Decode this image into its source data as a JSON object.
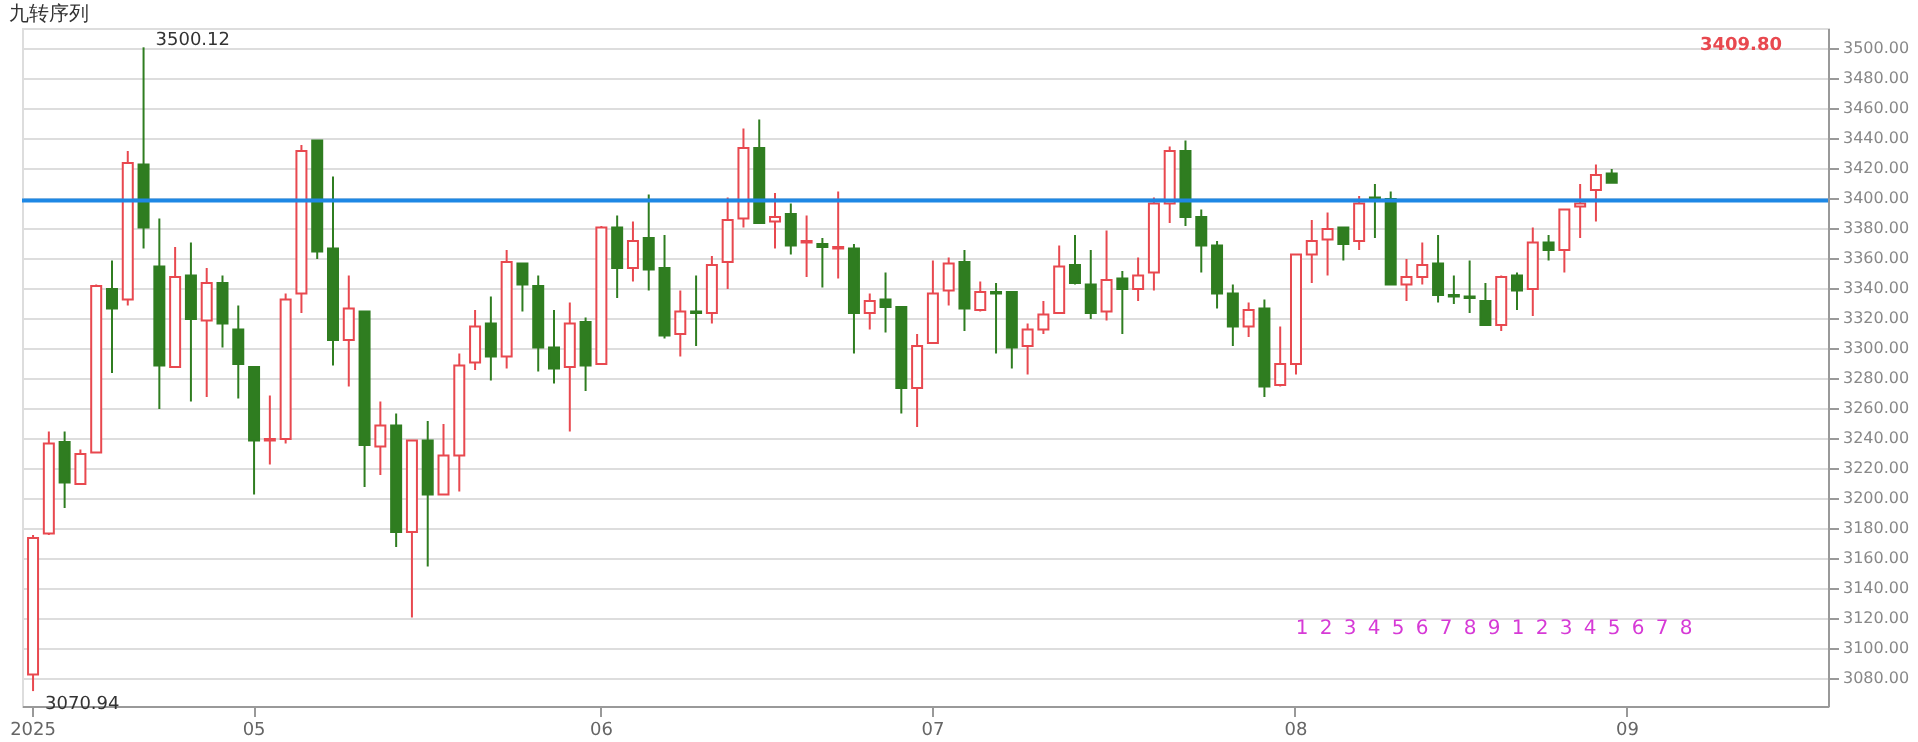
{
  "chart_data": {
    "type": "candlestick",
    "title": "九转序列",
    "categories": [
      "2025",
      null,
      null,
      null,
      null,
      null,
      null,
      null,
      null,
      null,
      null,
      null,
      null,
      null,
      "05",
      null,
      null,
      null,
      null,
      null,
      null,
      null,
      null,
      null,
      null,
      null,
      null,
      null,
      null,
      null,
      null,
      null,
      null,
      null,
      null,
      null,
      "06",
      null,
      null,
      null,
      null,
      null,
      null,
      null,
      null,
      null,
      null,
      null,
      null,
      null,
      null,
      null,
      null,
      null,
      null,
      null,
      null,
      "07",
      null,
      null,
      null,
      null,
      null,
      null,
      null,
      null,
      null,
      null,
      null,
      null,
      null,
      null,
      null,
      null,
      null,
      null,
      null,
      null,
      null,
      null,
      "08",
      null,
      null,
      null,
      null,
      null,
      null,
      null,
      null,
      null,
      null,
      null,
      null,
      null,
      null,
      null,
      null,
      null,
      null,
      null,
      null,
      "09",
      null,
      null,
      null,
      null,
      null,
      null,
      null,
      null,
      null,
      null,
      null,
      null
    ],
    "ohlc": [
      [
        3082,
        3175,
        3070.94,
        3173
      ],
      [
        3176,
        3244,
        3175,
        3236
      ],
      [
        3237,
        3244,
        3193,
        3210
      ],
      [
        3209,
        3232,
        3209,
        3229
      ],
      [
        3230,
        3342,
        3230,
        3341
      ],
      [
        3339,
        3358,
        3283,
        3326
      ],
      [
        3332,
        3431,
        3328,
        3423
      ],
      [
        3422,
        3500.12,
        3366,
        3380
      ],
      [
        3354,
        3386,
        3259,
        3288
      ],
      [
        3287,
        3367,
        3287,
        3347
      ],
      [
        3348,
        3370,
        3264,
        3319
      ],
      [
        3318,
        3353,
        3267,
        3343
      ],
      [
        3343,
        3348,
        3300,
        3316
      ],
      [
        3312,
        3328,
        3266,
        3289
      ],
      [
        3287,
        3287,
        3202,
        3238
      ],
      [
        3238,
        3268,
        3222,
        3239
      ],
      [
        3239,
        3336,
        3236,
        3332
      ],
      [
        3336,
        3435,
        3323,
        3431
      ],
      [
        3438,
        3438,
        3359,
        3364
      ],
      [
        3366,
        3414,
        3288,
        3305
      ],
      [
        3305,
        3348,
        3274,
        3326
      ],
      [
        3324,
        3324,
        3207,
        3235
      ],
      [
        3234,
        3264,
        3215,
        3248
      ],
      [
        3248,
        3256,
        3167,
        3177
      ],
      [
        3177,
        3238,
        3120,
        3238
      ],
      [
        3238,
        3251,
        3154,
        3202
      ],
      [
        3202,
        3249,
        3202,
        3228
      ],
      [
        3228,
        3296,
        3204,
        3288
      ],
      [
        3290,
        3325,
        3285,
        3314
      ],
      [
        3316,
        3334,
        3278,
        3294
      ],
      [
        3294,
        3365,
        3286,
        3357
      ],
      [
        3356,
        3356,
        3324,
        3342
      ],
      [
        3341,
        3348,
        3284,
        3300
      ],
      [
        3300,
        3325,
        3276,
        3286
      ],
      [
        3287,
        3330,
        3244,
        3316
      ],
      [
        3317,
        3320,
        3271,
        3288
      ],
      [
        3289,
        3381,
        3289,
        3380
      ],
      [
        3380,
        3388,
        3333,
        3353
      ],
      [
        3353,
        3384,
        3344,
        3371
      ],
      [
        3373,
        3402,
        3338,
        3352
      ],
      [
        3353,
        3375,
        3306,
        3308
      ],
      [
        3309,
        3338,
        3294,
        3324
      ],
      [
        3324,
        3348,
        3301,
        3323
      ],
      [
        3323,
        3361,
        3316,
        3355
      ],
      [
        3357,
        3400,
        3339,
        3385
      ],
      [
        3386,
        3446,
        3380,
        3433
      ],
      [
        3433,
        3452,
        3383,
        3383
      ],
      [
        3384,
        3403,
        3366,
        3387
      ],
      [
        3389,
        3396,
        3362,
        3368
      ],
      [
        3370,
        3388,
        3347,
        3371
      ],
      [
        3369,
        3373,
        3340,
        3367
      ],
      [
        3366,
        3404,
        3346,
        3367
      ],
      [
        3366,
        3369,
        3296,
        3323
      ],
      [
        3323,
        3336,
        3312,
        3331
      ],
      [
        3332,
        3350,
        3310,
        3327
      ],
      [
        3327,
        3327,
        3256,
        3273
      ],
      [
        3273,
        3309,
        3247,
        3301
      ],
      [
        3303,
        3358,
        3303,
        3336
      ],
      [
        3338,
        3360,
        3328,
        3356
      ],
      [
        3357,
        3365,
        3311,
        3326
      ],
      [
        3325,
        3344,
        3324,
        3337
      ],
      [
        3337,
        3343,
        3296,
        3336
      ],
      [
        3337,
        3337,
        3286,
        3300
      ],
      [
        3301,
        3316,
        3282,
        3312
      ],
      [
        3312,
        3331,
        3309,
        3322
      ],
      [
        3323,
        3368,
        3323,
        3354
      ],
      [
        3355,
        3375,
        3342,
        3343
      ],
      [
        3342,
        3365,
        3319,
        3323
      ],
      [
        3324,
        3378,
        3318,
        3345
      ],
      [
        3346,
        3351,
        3309,
        3339
      ],
      [
        3339,
        3360,
        3331,
        3348
      ],
      [
        3350,
        3400,
        3338,
        3396
      ],
      [
        3396,
        3434,
        3383,
        3431
      ],
      [
        3431,
        3438,
        3381,
        3387
      ],
      [
        3387,
        3392,
        3350,
        3368
      ],
      [
        3368,
        3371,
        3326,
        3336
      ],
      [
        3336,
        3342,
        3301,
        3314
      ],
      [
        3314,
        3330,
        3307,
        3325
      ],
      [
        3326,
        3332,
        3267,
        3274
      ],
      [
        3275,
        3314,
        3274,
        3289
      ],
      [
        3289,
        3362,
        3282,
        3362
      ],
      [
        3362,
        3385,
        3343,
        3371
      ],
      [
        3372,
        3390,
        3348,
        3379
      ],
      [
        3380,
        3380,
        3358,
        3369
      ],
      [
        3371,
        3401,
        3365,
        3396
      ],
      [
        3400,
        3409,
        3373,
        3399
      ],
      [
        3399,
        3404,
        3342,
        3342
      ],
      [
        3342,
        3359,
        3331,
        3347
      ],
      [
        3347,
        3370,
        3342,
        3355
      ],
      [
        3356,
        3375,
        3330,
        3335
      ],
      [
        3335,
        3348,
        3329,
        3334
      ],
      [
        3334,
        3358,
        3323,
        3333
      ],
      [
        3331,
        3343,
        3315,
        3315
      ],
      [
        3315,
        3348,
        3311,
        3347
      ],
      [
        3348,
        3350,
        3325,
        3338
      ],
      [
        3339,
        3380,
        3321,
        3370
      ],
      [
        3370,
        3375,
        3358,
        3365
      ],
      [
        3365,
        3392,
        3350,
        3392
      ],
      [
        3394,
        3409,
        3373,
        3396
      ],
      [
        3405,
        3422,
        3384,
        3415
      ],
      [
        3416,
        3419,
        3409.8,
        3409.8
      ],
      null,
      null,
      null,
      null,
      null,
      null,
      null,
      null,
      null,
      null,
      null,
      null,
      null
    ],
    "ylim": [
      3061,
      3513
    ],
    "yticks": [
      {
        "value": 3080,
        "label": "3080.00"
      },
      {
        "value": 3100,
        "label": "3100.00"
      },
      {
        "value": 3120,
        "label": "3120.00"
      },
      {
        "value": 3140,
        "label": "3140.00"
      },
      {
        "value": 3160,
        "label": "3160.00"
      },
      {
        "value": 3180,
        "label": "3180.00"
      },
      {
        "value": 3200,
        "label": "3200.00"
      },
      {
        "value": 3220,
        "label": "3220.00"
      },
      {
        "value": 3240,
        "label": "3240.00"
      },
      {
        "value": 3260,
        "label": "3260.00"
      },
      {
        "value": 3280,
        "label": "3280.00"
      },
      {
        "value": 3300,
        "label": "3300.00"
      },
      {
        "value": 3320,
        "label": "3320.00"
      },
      {
        "value": 3340,
        "label": "3340.00"
      },
      {
        "value": 3360,
        "label": "3360.00"
      },
      {
        "value": 3380,
        "label": "3380.00"
      },
      {
        "value": 3400,
        "label": "3400.00"
      },
      {
        "value": 3420,
        "label": "3420.00"
      },
      {
        "value": 3440,
        "label": "3440.00"
      },
      {
        "value": 3460,
        "label": "3460.00"
      },
      {
        "value": 3480,
        "label": "3480.00"
      },
      {
        "value": 3500,
        "label": "3500.00"
      }
    ],
    "grid": "y",
    "ref_lines": [
      {
        "axis": "y",
        "value": 3398,
        "color": "#1e88e5"
      }
    ],
    "annotations": [
      "3500.12",
      "3070.94",
      "3409.80",
      "1",
      "2",
      "3",
      "4",
      "5",
      "6",
      "7",
      "8",
      "9",
      "1",
      "2",
      "3",
      "4",
      "5",
      "6",
      "7",
      "8"
    ]
  }
}
